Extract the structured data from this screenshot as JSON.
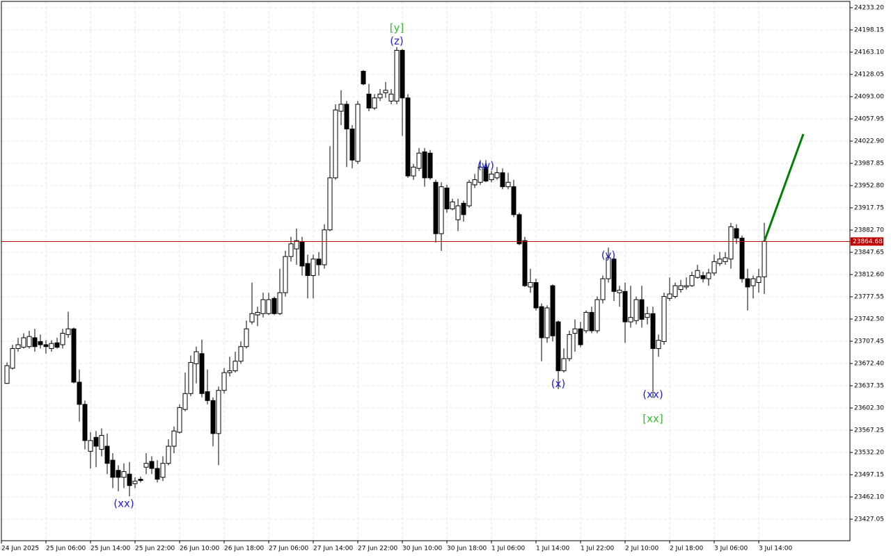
{
  "chart_data": {
    "type": "candlestick",
    "open": [
      23641,
      23665,
      23696,
      23698,
      23699,
      23713,
      23707,
      23702,
      23696,
      23705,
      23702,
      23718,
      23727,
      23643,
      23608,
      23534,
      23556,
      23537,
      23542,
      23520,
      23504,
      23493,
      23498,
      23483,
      23490,
      23509,
      23518,
      23507,
      23493,
      23515,
      23542,
      23564,
      23600,
      23625,
      23672,
      23688,
      23628,
      23614,
      23562,
      23630,
      23658,
      23661,
      23676,
      23699,
      23738,
      23749,
      23751,
      23751,
      23775,
      23751,
      23784,
      23841,
      23853,
      23864,
      23830,
      23811,
      23837,
      23828,
      23883,
      23965,
      24070,
      24081,
      24042,
      23991,
      24133,
      24097,
      24075,
      24091,
      24099,
      24086,
      24086,
      24166,
      24091,
      23968,
      23980,
      24006,
      24004,
      23958,
      23877,
      23949,
      23916,
      23899,
      23925,
      23921,
      23954,
      23958,
      23982,
      23962,
      23965,
      23973,
      23951,
      23951,
      23907,
      23866,
      23793,
      23800,
      23762,
      23713,
      23795,
      23738,
      23661,
      23680,
      23720,
      23727,
      23724,
      23753,
      23724,
      23773,
      23806,
      23837,
      23784,
      23786,
      23738,
      23740,
      23773,
      23745,
      23751,
      23696,
      23707,
      23775,
      23778,
      23789,
      23793,
      23795,
      23808,
      23811,
      23806,
      23815,
      23830,
      23833,
      23837,
      23885,
      23870,
      23806,
      23795,
      23800,
      23809
    ],
    "high": [
      23674,
      23702,
      23713,
      23720,
      23724,
      23727,
      23718,
      23709,
      23709,
      23713,
      23727,
      23754,
      23729,
      23663,
      23614,
      23564,
      23566,
      23570,
      23562,
      23531,
      23512,
      23515,
      23517,
      23493,
      23494,
      23531,
      23526,
      23520,
      23526,
      23553,
      23573,
      23608,
      23658,
      23685,
      23699,
      23710,
      23663,
      23619,
      23636,
      23665,
      23683,
      23691,
      23707,
      23740,
      23800,
      23762,
      23784,
      23784,
      23778,
      23822,
      23850,
      23872,
      23885,
      23872,
      23844,
      23844,
      23848,
      23892,
      24015,
      24081,
      24103,
      24086,
      24048,
      24086,
      24135,
      24113,
      24097,
      24105,
      24116,
      24105,
      24171,
      24168,
      24097,
      23987,
      24012,
      24012,
      24009,
      23962,
      23958,
      23954,
      23932,
      23932,
      23929,
      23962,
      23971,
      23993,
      23993,
      23976,
      23982,
      23980,
      23973,
      23962,
      23910,
      23872,
      23822,
      23806,
      23767,
      23764,
      23797,
      23740,
      23696,
      23724,
      23742,
      23738,
      23756,
      23762,
      23778,
      23811,
      23855,
      23839,
      23795,
      23800,
      23795,
      23778,
      23795,
      23762,
      23762,
      23718,
      23784,
      23808,
      23800,
      23804,
      23808,
      23817,
      23828,
      23817,
      23822,
      23844,
      23848,
      23848,
      23894,
      23892,
      23874,
      23822,
      23811,
      23822,
      23894
    ],
    "low": [
      23641,
      23663,
      23691,
      23696,
      23696,
      23691,
      23696,
      23688,
      23691,
      23696,
      23696,
      23713,
      23641,
      23581,
      23537,
      23507,
      23509,
      23526,
      23498,
      23476,
      23471,
      23476,
      23463,
      23476,
      23485,
      23498,
      23498,
      23485,
      23487,
      23512,
      23531,
      23562,
      23597,
      23621,
      23641,
      23619,
      23608,
      23542,
      23512,
      23625,
      23652,
      23658,
      23672,
      23696,
      23734,
      23731,
      23745,
      23749,
      23749,
      23749,
      23778,
      23833,
      23828,
      23811,
      23775,
      23775,
      23811,
      23822,
      23881,
      23962,
      24048,
      23982,
      23980,
      23987,
      24111,
      24070,
      24072,
      24086,
      24091,
      24081,
      24081,
      24031,
      23965,
      23962,
      23976,
      23951,
      23962,
      23863,
      23850,
      23910,
      23914,
      23881,
      23896,
      23918,
      23949,
      23954,
      23958,
      23958,
      23962,
      23947,
      23947,
      23903,
      23859,
      23793,
      23784,
      23756,
      23676,
      23705,
      23707,
      23632,
      23658,
      23676,
      23691,
      23698,
      23720,
      23720,
      23720,
      23767,
      23800,
      23771,
      23762,
      23705,
      23729,
      23734,
      23729,
      23734,
      23619,
      23683,
      23702,
      23771,
      23775,
      23784,
      23789,
      23793,
      23806,
      23800,
      23795,
      23811,
      23826,
      23828,
      23822,
      23861,
      23800,
      23756,
      23775,
      23784,
      23782
    ],
    "close": [
      23669,
      23696,
      23702,
      23713,
      23715,
      23699,
      23702,
      23699,
      23704,
      23698,
      23720,
      23727,
      23643,
      23608,
      23551,
      23551,
      23542,
      23559,
      23515,
      23493,
      23493,
      23502,
      23480,
      23487,
      23488,
      23515,
      23507,
      23490,
      23515,
      23542,
      23566,
      23603,
      23625,
      23674,
      23691,
      23625,
      23614,
      23562,
      23630,
      23658,
      23661,
      23676,
      23699,
      23727,
      23751,
      23753,
      23773,
      23773,
      23751,
      23784,
      23841,
      23861,
      23866,
      23826,
      23811,
      23837,
      23828,
      23883,
      23965,
      24072,
      24081,
      24042,
      23993,
      24081,
      24113,
      24075,
      24091,
      24097,
      24103,
      24097,
      24166,
      24091,
      23968,
      23982,
      24004,
      23965,
      23965,
      23877,
      23951,
      23916,
      23927,
      23921,
      23907,
      23958,
      23962,
      23982,
      23960,
      23971,
      23973,
      23951,
      23958,
      23907,
      23861,
      23795,
      23800,
      23760,
      23713,
      23760,
      23716,
      23661,
      23680,
      23718,
      23727,
      23702,
      23753,
      23724,
      23773,
      23806,
      23839,
      23786,
      23788,
      23738,
      23745,
      23773,
      23742,
      23751,
      23696,
      23709,
      23778,
      23782,
      23795,
      23795,
      23795,
      23811,
      23819,
      23806,
      23815,
      23833,
      23837,
      23839,
      23888,
      23870,
      23806,
      23793,
      23806,
      23809,
      23865
    ],
    "xlim": [
      -1,
      151.375
    ],
    "ylim": [
      23393.1,
      24243.1
    ],
    "yticks": [
      {
        "value": 24233.2,
        "label": "24233.20"
      },
      24198.15,
      {
        "value": 24163.1,
        "label": "24163.10"
      },
      24128.05,
      {
        "value": 24093,
        "label": "24093.00"
      },
      {
        "value": 24057.95,
        "label": "24057.95"
      },
      {
        "value": 24022.9,
        "label": "24022.90"
      },
      23987.85,
      {
        "value": 23952.8,
        "label": "23952.80"
      },
      23917.75,
      {
        "value": 23882.7,
        "label": "23882.70"
      },
      23847.65,
      {
        "value": 23812.6,
        "label": "23812.60"
      },
      23777.55,
      {
        "value": 23742.5,
        "label": "23742.50"
      },
      23707.45,
      {
        "value": 23672.4,
        "label": "23672.40"
      },
      23637.35,
      {
        "value": 23602.3,
        "label": "23602.30"
      },
      23567.25,
      {
        "value": 23532.2,
        "label": "23532.20"
      },
      23497.15,
      {
        "value": 23462.1,
        "label": "23462.10"
      },
      23427.05
    ],
    "xticks": [
      {
        "value": -1,
        "label": "24 Jun 2025"
      },
      {
        "value": 7,
        "label": "25 Jun 06:00"
      },
      {
        "value": 15,
        "label": "25 Jun 14:00"
      },
      {
        "value": 23,
        "label": "25 Jun 22:00"
      },
      {
        "value": 31,
        "label": "26 Jun 10:00"
      },
      {
        "value": 39,
        "label": "26 Jun 18:00"
      },
      {
        "value": 47,
        "label": "27 Jun 06:00"
      },
      {
        "value": 55,
        "label": "27 Jun 14:00"
      },
      {
        "value": 63,
        "label": "27 Jun 22:00"
      },
      {
        "value": 71,
        "label": "30 Jun 10:00"
      },
      {
        "value": 79,
        "label": "30 Jun 18:00"
      },
      {
        "value": 87,
        "label": "1 Jul 06:00"
      },
      {
        "value": 95,
        "label": "1 Jul 14:00"
      },
      {
        "value": 103,
        "label": "1 Jul 22:00"
      },
      {
        "value": 111,
        "label": "2 Jul 10:00"
      },
      {
        "value": 119,
        "label": "2 Jul 18:00"
      },
      {
        "value": 127,
        "label": "3 Jul 06:00"
      },
      {
        "value": 135,
        "label": "3 Jul 14:00"
      }
    ],
    "grid": true,
    "current_price": 23864.68,
    "current_price_color": "#c00000",
    "projection": {
      "x": [
        136,
        143
      ],
      "y": [
        23865,
        24034
      ],
      "color": "#008000"
    },
    "annotations": [
      {
        "text": "[y]",
        "x": 70,
        "y": 24201,
        "color": "#33bb33"
      },
      {
        "text": "(z)",
        "x": 70,
        "y": 24180,
        "color": "#2222dd"
      },
      {
        "text": "(w)",
        "x": 86,
        "y": 23984,
        "color": "#2222dd"
      },
      {
        "text": "(y)",
        "x": 108,
        "y": 23843,
        "color": "#2222dd"
      },
      {
        "text": "(x)",
        "x": 99,
        "y": 23640,
        "color": "#2222dd"
      },
      {
        "text": "(xx)",
        "x": 116,
        "y": 23623,
        "color": "#2222dd"
      },
      {
        "text": "[xx]",
        "x": 116,
        "y": 23585,
        "color": "#33bb33"
      },
      {
        "text": "(xx)",
        "x": 21,
        "y": 23451,
        "color": "#2222dd"
      }
    ]
  }
}
